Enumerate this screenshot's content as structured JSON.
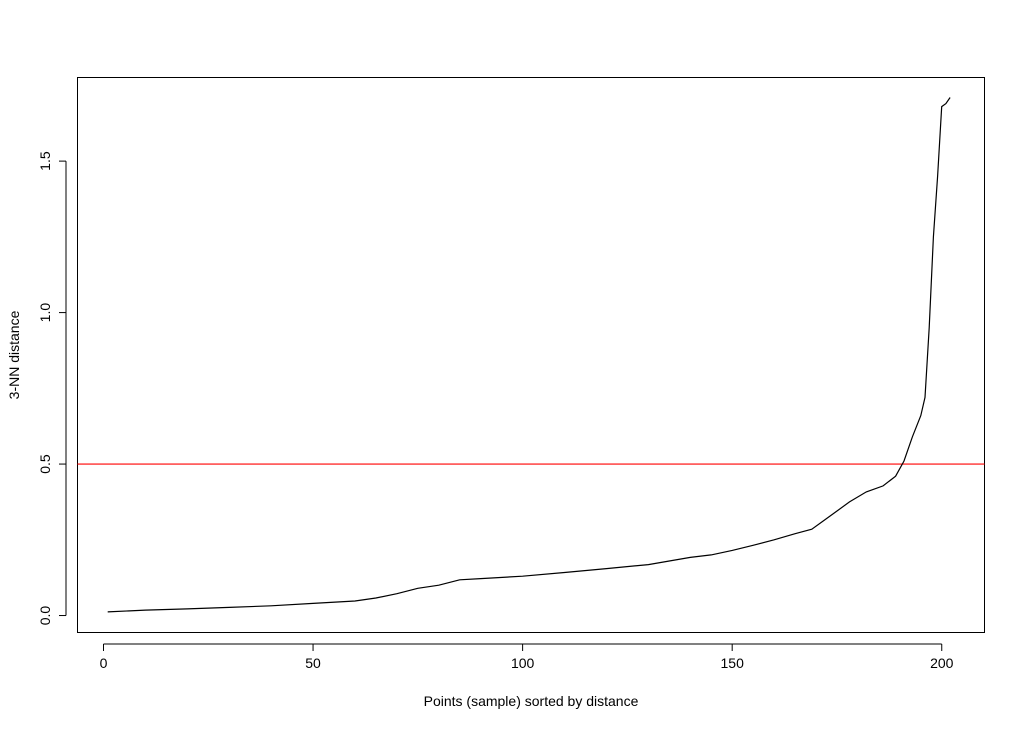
{
  "chart_data": {
    "type": "line",
    "title": "",
    "xlabel": "Points (sample) sorted by distance",
    "ylabel": "3-NN distance",
    "xlim": [
      -6.2,
      210.2
    ],
    "ylim": [
      -0.056,
      1.776
    ],
    "x_ticks": [
      0,
      50,
      100,
      150,
      200
    ],
    "x_tick_labels": [
      "0",
      "50",
      "100",
      "150",
      "200"
    ],
    "y_ticks": [
      0.0,
      0.5,
      1.0,
      1.5
    ],
    "y_tick_labels": [
      "0.0",
      "0.5",
      "1.0",
      "1.5"
    ],
    "grid": false,
    "legend": "none",
    "reference_lines": [
      {
        "orientation": "horizontal",
        "y": 0.5,
        "color": "#ff0000"
      }
    ],
    "series": [
      {
        "color": "#000000",
        "points": [
          [
            1,
            0.012
          ],
          [
            10,
            0.018
          ],
          [
            20,
            0.022
          ],
          [
            30,
            0.027
          ],
          [
            40,
            0.032
          ],
          [
            50,
            0.04
          ],
          [
            60,
            0.048
          ],
          [
            65,
            0.058
          ],
          [
            70,
            0.072
          ],
          [
            75,
            0.09
          ],
          [
            80,
            0.1
          ],
          [
            85,
            0.118
          ],
          [
            90,
            0.122
          ],
          [
            100,
            0.13
          ],
          [
            110,
            0.142
          ],
          [
            120,
            0.155
          ],
          [
            130,
            0.168
          ],
          [
            135,
            0.18
          ],
          [
            140,
            0.192
          ],
          [
            145,
            0.2
          ],
          [
            150,
            0.215
          ],
          [
            155,
            0.232
          ],
          [
            160,
            0.25
          ],
          [
            165,
            0.27
          ],
          [
            169,
            0.285
          ],
          [
            172,
            0.315
          ],
          [
            175,
            0.345
          ],
          [
            178,
            0.375
          ],
          [
            182,
            0.408
          ],
          [
            186,
            0.428
          ],
          [
            189,
            0.46
          ],
          [
            191,
            0.51
          ],
          [
            193,
            0.59
          ],
          [
            195,
            0.66
          ],
          [
            196,
            0.72
          ],
          [
            197,
            0.95
          ],
          [
            198,
            1.25
          ],
          [
            199,
            1.45
          ],
          [
            200,
            1.68
          ],
          [
            201,
            1.69
          ],
          [
            202,
            1.71
          ]
        ]
      }
    ]
  }
}
